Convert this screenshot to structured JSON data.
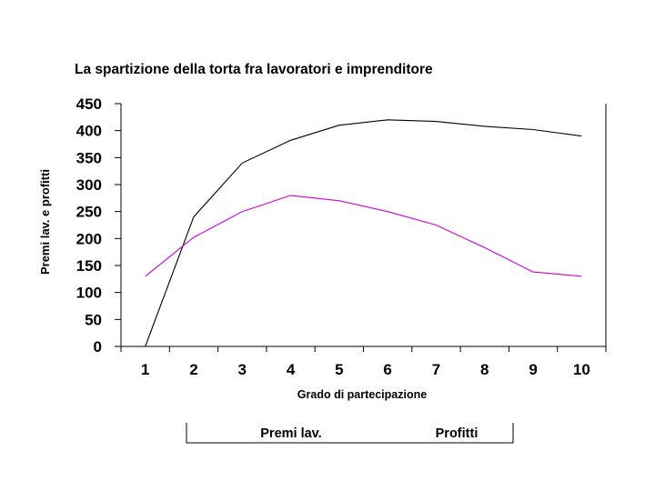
{
  "chart_data": {
    "type": "line",
    "title": "La spartizione della torta fra lavoratori e imprenditore",
    "xlabel": "Grado di partecipazione",
    "ylabel": "Premi lav. e profitti",
    "x": [
      1,
      2,
      3,
      4,
      5,
      6,
      7,
      8,
      9,
      10
    ],
    "ylim": [
      0,
      450
    ],
    "yticks": [
      0,
      50,
      100,
      150,
      200,
      250,
      300,
      350,
      400,
      450
    ],
    "grid": false,
    "legend_position": "bottom",
    "series": [
      {
        "name": "Premi lav.",
        "color": "#000000",
        "values": [
          0,
          240,
          340,
          382,
          410,
          420,
          417,
          408,
          402,
          390
        ]
      },
      {
        "name": "Profitti",
        "color": "#cc00cc",
        "values": [
          130,
          202,
          250,
          280,
          270,
          250,
          225,
          183,
          138,
          130
        ]
      }
    ]
  }
}
